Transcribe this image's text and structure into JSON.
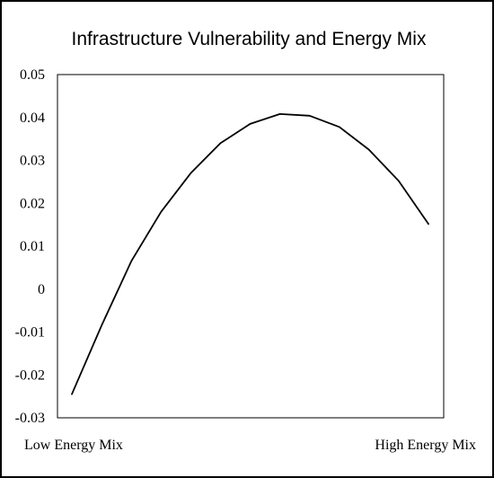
{
  "chart_data": {
    "type": "line",
    "title": "Infrastructure Vulnerability and Energy Mix",
    "xlabel": "",
    "ylabel": "",
    "x_end_labels": {
      "left": "Low Energy Mix",
      "right": "High Energy Mix"
    },
    "ylim": [
      -0.03,
      0.05
    ],
    "yticks": [
      -0.03,
      -0.02,
      -0.01,
      0,
      0.01,
      0.02,
      0.03,
      0.04,
      0.05
    ],
    "ytick_labels": [
      "-0.03",
      "-0.02",
      "-0.01",
      "0",
      "0.01",
      "0.02",
      "0.03",
      "0.04",
      "0.05"
    ],
    "grid": false,
    "legend": "none",
    "series": [
      {
        "values": [
          -0.0245,
          -0.0085,
          0.0065,
          0.018,
          0.027,
          0.034,
          0.0385,
          0.0408,
          0.0404,
          0.0378,
          0.0325,
          0.0252,
          0.0152
        ],
        "color": "#000000"
      }
    ]
  }
}
